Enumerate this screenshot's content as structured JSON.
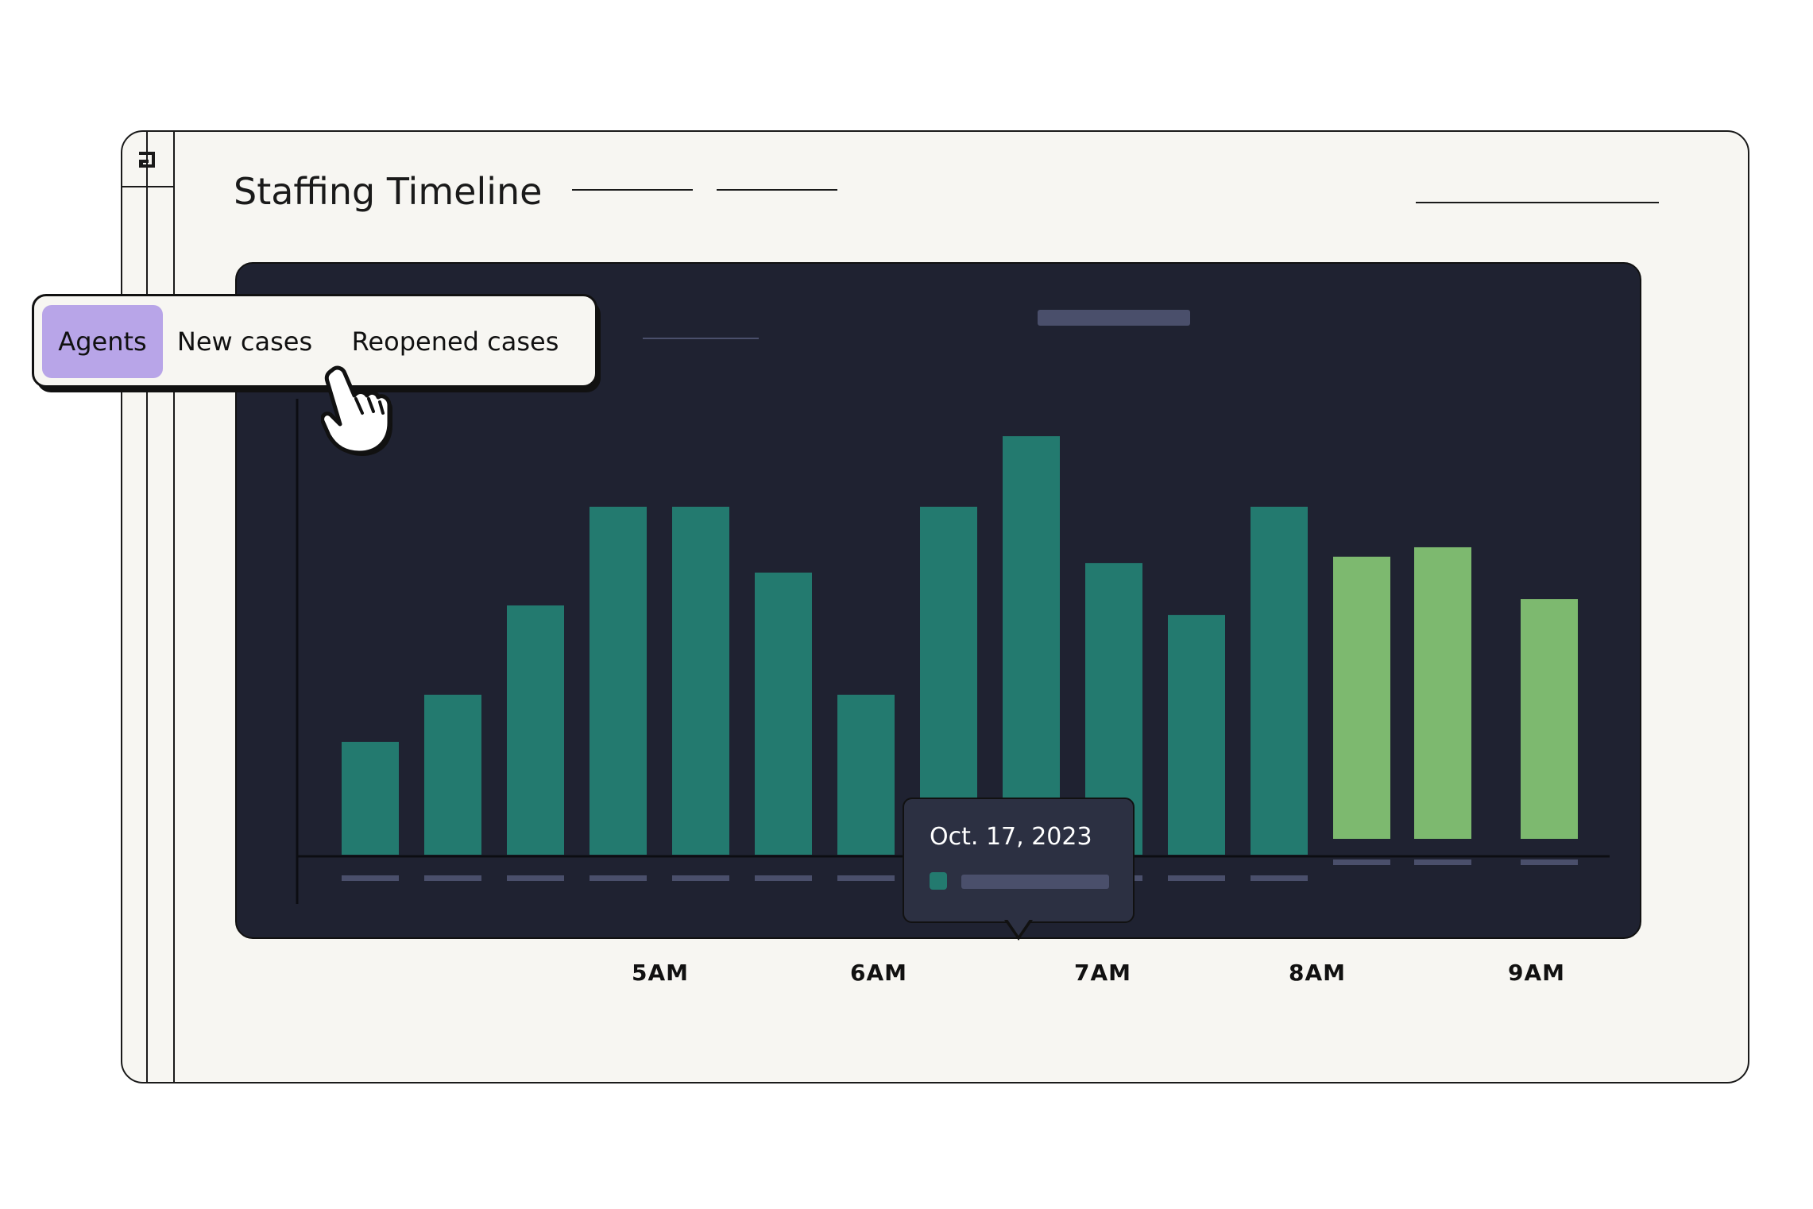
{
  "header": {
    "title": "Staffing Timeline"
  },
  "metric_tabs": {
    "items": [
      {
        "label": "Agents",
        "selected": true
      },
      {
        "label": "New cases",
        "selected": false
      },
      {
        "label": "Reopened cases",
        "selected": false
      }
    ],
    "selected_color": "#b8a5e8"
  },
  "chart": {
    "tooltip": {
      "date": "Oct. 17, 2023",
      "swatch_color": "#237a6f"
    },
    "colors": {
      "actual": "#237a6f",
      "forecast": "#7db96f",
      "background": "#1f2231",
      "placeholder": "#4a4f6b"
    }
  },
  "chart_data": {
    "type": "bar",
    "title": "",
    "categories": [
      "",
      "",
      "",
      "",
      "",
      "",
      "",
      "",
      "",
      "",
      "",
      "",
      "",
      "",
      ""
    ],
    "series": [
      {
        "values": [
          24,
          34,
          53,
          74,
          74,
          60,
          34,
          74,
          89,
          62,
          51,
          74,
          null,
          null,
          null
        ]
      },
      {
        "values": [
          null,
          null,
          null,
          null,
          null,
          null,
          null,
          null,
          null,
          null,
          null,
          null,
          60,
          62,
          51
        ]
      }
    ],
    "ylim": [
      0,
      100
    ],
    "grid": false,
    "legend": "none"
  },
  "timeline": {
    "time_labels": [
      "5AM",
      "6AM",
      "7AM",
      "8AM",
      "9AM"
    ],
    "segment_colors": {
      "dark": "#237a6f",
      "light": "#7db96f",
      "lavender": "#b19fe6",
      "pale": "#d8cbfa"
    }
  }
}
